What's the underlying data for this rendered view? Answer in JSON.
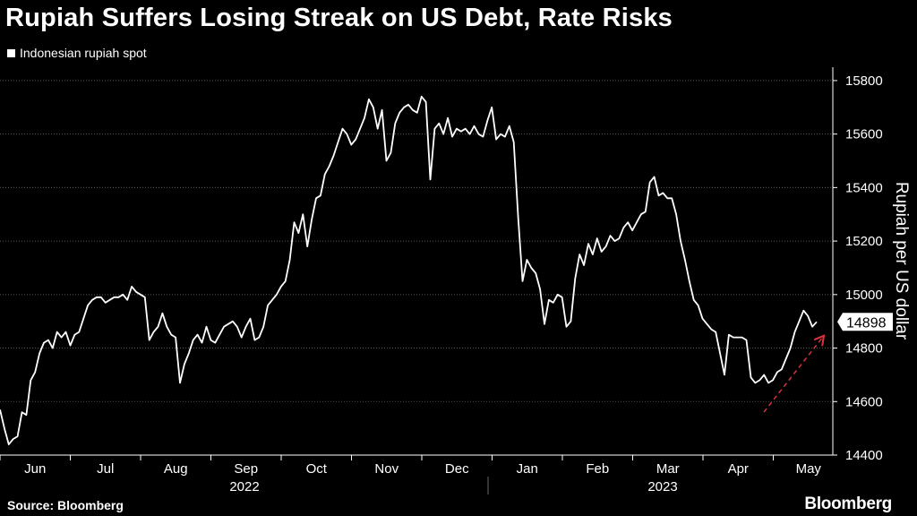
{
  "chart_data": {
    "type": "line",
    "title": "Rupiah Suffers Losing Streak on US Debt, Rate Risks",
    "series": [
      {
        "name": "Indonesian rupiah spot",
        "color": "#ffffff",
        "values": [
          14570,
          14500,
          14440,
          14460,
          14470,
          14560,
          14550,
          14680,
          14710,
          14780,
          14820,
          14830,
          14800,
          14860,
          14840,
          14860,
          14810,
          14850,
          14860,
          14910,
          14960,
          14980,
          14990,
          14990,
          14970,
          14980,
          14990,
          14990,
          15000,
          14980,
          15030,
          15010,
          15000,
          14990,
          14830,
          14860,
          14880,
          14930,
          14880,
          14850,
          14840,
          14670,
          14740,
          14780,
          14830,
          14850,
          14820,
          14880,
          14830,
          14820,
          14850,
          14880,
          14890,
          14900,
          14880,
          14840,
          14880,
          14910,
          14830,
          14840,
          14880,
          14960,
          14980,
          15000,
          15030,
          15050,
          15130,
          15270,
          15230,
          15300,
          15180,
          15280,
          15360,
          15370,
          15450,
          15480,
          15520,
          15570,
          15620,
          15600,
          15560,
          15580,
          15620,
          15660,
          15730,
          15700,
          15620,
          15690,
          15500,
          15530,
          15640,
          15680,
          15700,
          15710,
          15690,
          15680,
          15740,
          15720,
          15430,
          15620,
          15640,
          15600,
          15660,
          15590,
          15620,
          15610,
          15620,
          15600,
          15630,
          15600,
          15590,
          15650,
          15700,
          15580,
          15600,
          15590,
          15630,
          15570,
          15290,
          15050,
          15130,
          15100,
          15080,
          15020,
          14890,
          14980,
          14970,
          15000,
          14990,
          14880,
          14900,
          15060,
          15150,
          15110,
          15190,
          15150,
          15210,
          15160,
          15180,
          15220,
          15200,
          15210,
          15250,
          15270,
          15240,
          15270,
          15300,
          15310,
          15420,
          15440,
          15370,
          15380,
          15360,
          15360,
          15300,
          15200,
          15130,
          15050,
          14980,
          14960,
          14910,
          14890,
          14870,
          14860,
          14780,
          14700,
          14850,
          14840,
          14840,
          14840,
          14830,
          14690,
          14670,
          14680,
          14700,
          14670,
          14680,
          14710,
          14720,
          14760,
          14800,
          14860,
          14900,
          14940,
          14920,
          14880,
          14898
        ]
      }
    ],
    "ylim": [
      14400,
      15850
    ],
    "yticks": [
      14400,
      14600,
      14800,
      15000,
      15200,
      15400,
      15600,
      15800
    ],
    "ylabel": "Rupiah per US dollar",
    "xlabel": "",
    "x_month_labels": [
      "Jun",
      "Jul",
      "Aug",
      "Sep",
      "Oct",
      "Nov",
      "Dec",
      "Jan",
      "Feb",
      "Mar",
      "Apr",
      "May"
    ],
    "x_year_labels": [
      "2022",
      "2023"
    ],
    "last_value_label": "14898",
    "annotation": "dashed red arrow indicating upward trend"
  },
  "legend": {
    "label": "Indonesian rupiah spot"
  },
  "footer": {
    "source": "Source: Bloomberg",
    "brand": "Bloomberg"
  },
  "colors": {
    "background": "#000000",
    "line": "#ffffff",
    "grid": "#555555",
    "arrow": "#d7333d"
  }
}
